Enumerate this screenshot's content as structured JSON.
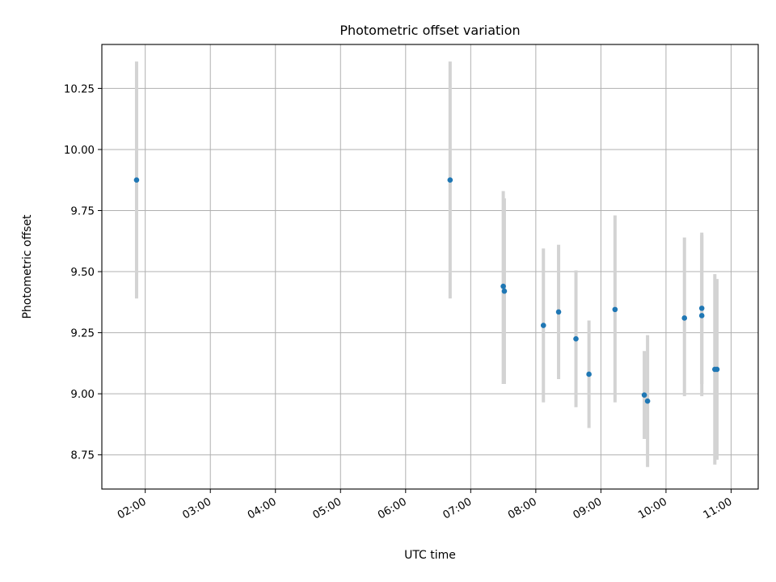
{
  "chart_data": {
    "type": "scatter",
    "title": "Photometric offset variation",
    "xlabel": "UTC time",
    "ylabel": "Photometric offset",
    "xlim": [
      "01:20",
      "11:25"
    ],
    "ylim": [
      8.61,
      10.43
    ],
    "xticks": [
      "02:00",
      "03:00",
      "04:00",
      "05:00",
      "06:00",
      "07:00",
      "08:00",
      "09:00",
      "10:00",
      "11:00"
    ],
    "yticks": [
      "8.75",
      "9.00",
      "9.25",
      "9.50",
      "9.75",
      "10.00",
      "10.25"
    ],
    "grid": true,
    "colors": {
      "points": "#1f77b4",
      "errorbars": "#d3d3d3",
      "grid": "#b0b0b0"
    },
    "series": [
      {
        "points": [
          {
            "x": "01:52",
            "y": 9.875,
            "ylow": 9.39,
            "yhigh": 10.36
          },
          {
            "x": "06:41",
            "y": 9.875,
            "ylow": 9.39,
            "yhigh": 10.36
          },
          {
            "x": "07:30",
            "y": 9.44,
            "ylow": 9.04,
            "yhigh": 9.83
          },
          {
            "x": "07:31",
            "y": 9.42,
            "ylow": 9.04,
            "yhigh": 9.8
          },
          {
            "x": "08:07",
            "y": 9.28,
            "ylow": 8.965,
            "yhigh": 9.595
          },
          {
            "x": "08:21",
            "y": 9.335,
            "ylow": 9.06,
            "yhigh": 9.61
          },
          {
            "x": "08:37",
            "y": 9.225,
            "ylow": 8.945,
            "yhigh": 9.505
          },
          {
            "x": "08:49",
            "y": 9.08,
            "ylow": 8.86,
            "yhigh": 9.3
          },
          {
            "x": "09:13",
            "y": 9.345,
            "ylow": 8.965,
            "yhigh": 9.73
          },
          {
            "x": "09:40",
            "y": 8.995,
            "ylow": 8.815,
            "yhigh": 9.175
          },
          {
            "x": "09:43",
            "y": 8.97,
            "ylow": 8.7,
            "yhigh": 9.24
          },
          {
            "x": "10:17",
            "y": 9.31,
            "ylow": 8.99,
            "yhigh": 9.64
          },
          {
            "x": "10:33",
            "y": 9.35,
            "ylow": 9.04,
            "yhigh": 9.66
          },
          {
            "x": "10:33",
            "y": 9.32,
            "ylow": 8.99,
            "yhigh": 9.65
          },
          {
            "x": "10:45",
            "y": 9.1,
            "ylow": 8.71,
            "yhigh": 9.49
          },
          {
            "x": "10:47",
            "y": 9.1,
            "ylow": 8.73,
            "yhigh": 9.47
          }
        ]
      }
    ]
  }
}
